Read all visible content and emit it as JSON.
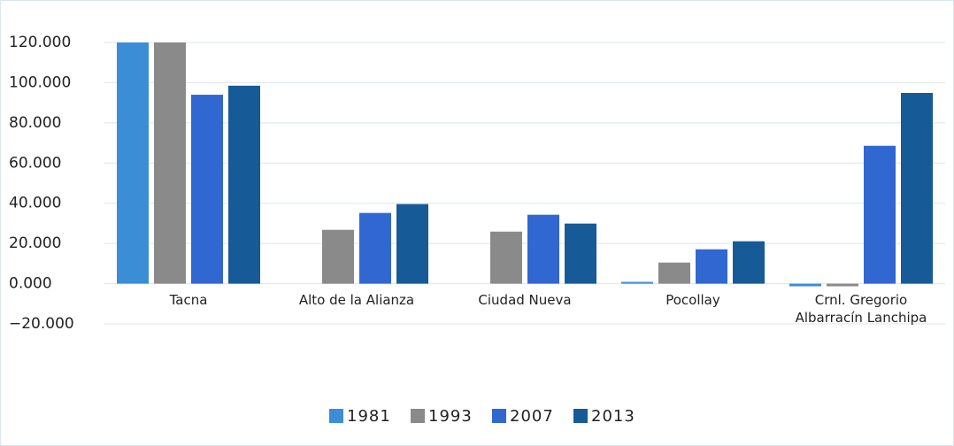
{
  "chart_data": {
    "type": "bar",
    "categories": [
      "Tacna",
      "Alto de la Alianza",
      "Ciudad Nueva",
      "Pocollay",
      "Crnl. Gregorio Albarracín Lanchipa"
    ],
    "series": [
      {
        "name": "1981",
        "color": "#3b8ed6",
        "values": [
          120000,
          0,
          0,
          900,
          -1300
        ]
      },
      {
        "name": "1993",
        "color": "#8a8a8a",
        "values": [
          120000,
          26800,
          25900,
          10500,
          -1300
        ]
      },
      {
        "name": "2007",
        "color": "#3167d0",
        "values": [
          94000,
          35200,
          34300,
          17100,
          68600
        ]
      },
      {
        "name": "2013",
        "color": "#175a98",
        "values": [
          98500,
          39600,
          29900,
          21100,
          94900
        ]
      }
    ],
    "ylim": [
      -20000,
      120000
    ],
    "yticks": [
      {
        "value": -20000,
        "label": "−20.000"
      },
      {
        "value": 0,
        "label": "0.000"
      },
      {
        "value": 20000,
        "label": "20.000"
      },
      {
        "value": 40000,
        "label": "40.000"
      },
      {
        "value": 60000,
        "label": "60.000"
      },
      {
        "value": 80000,
        "label": "80.000"
      },
      {
        "value": 100000,
        "label": "100.000"
      },
      {
        "value": 120000,
        "label": "120.000"
      }
    ],
    "grid": true,
    "legend": "bottom"
  }
}
